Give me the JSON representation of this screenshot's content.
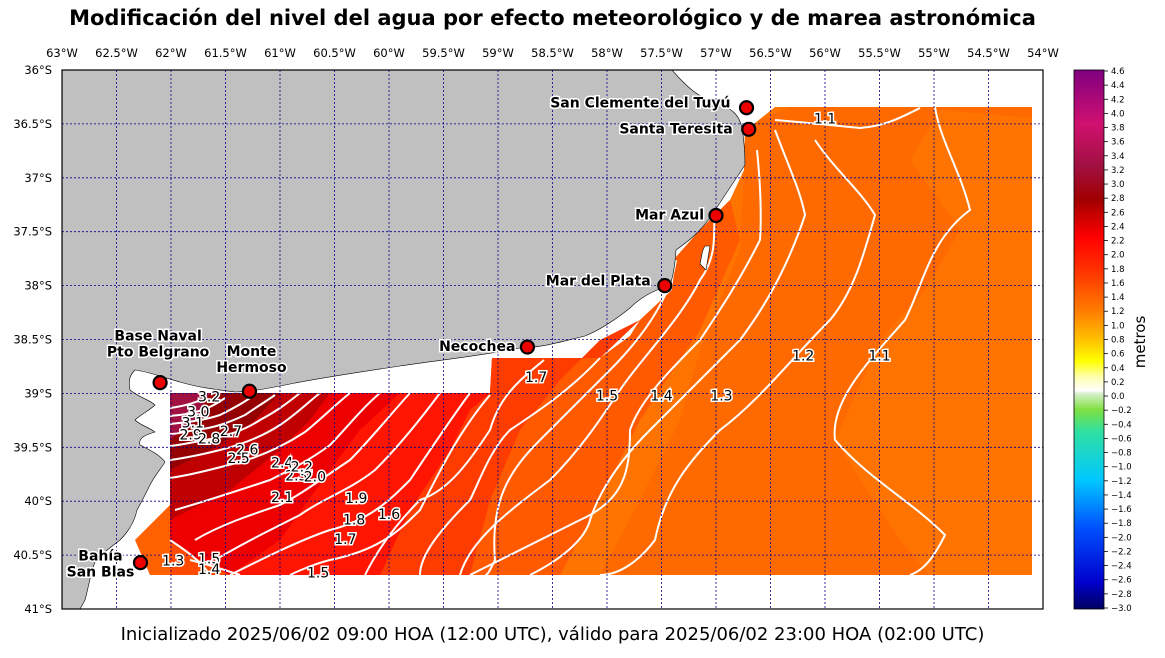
{
  "title": "Modificación del nivel del agua por efecto meteorológico y de marea astronómica",
  "footer": "Inicializado 2025/06/02 09:00 HOA (12:00 UTC), válido para 2025/06/02 23:00 HOA (02:00 UTC)",
  "map": {
    "lon_range": [
      -63.0,
      -54.0
    ],
    "lat_range": [
      -41.0,
      -36.0
    ],
    "lon_ticks": [
      {
        "v": -63.0,
        "label": "63°W"
      },
      {
        "v": -62.5,
        "label": "62.5°W"
      },
      {
        "v": -62.0,
        "label": "62°W"
      },
      {
        "v": -61.5,
        "label": "61.5°W"
      },
      {
        "v": -61.0,
        "label": "61°W"
      },
      {
        "v": -60.5,
        "label": "60.5°W"
      },
      {
        "v": -60.0,
        "label": "60°W"
      },
      {
        "v": -59.5,
        "label": "59.5°W"
      },
      {
        "v": -59.0,
        "label": "59°W"
      },
      {
        "v": -58.5,
        "label": "58.5°W"
      },
      {
        "v": -58.0,
        "label": "58°W"
      },
      {
        "v": -57.5,
        "label": "57.5°W"
      },
      {
        "v": -57.0,
        "label": "57°W"
      },
      {
        "v": -56.5,
        "label": "56.5°W"
      },
      {
        "v": -56.0,
        "label": "56°W"
      },
      {
        "v": -55.5,
        "label": "55.5°W"
      },
      {
        "v": -55.0,
        "label": "55°W"
      },
      {
        "v": -54.5,
        "label": "54.5°W"
      },
      {
        "v": -54.0,
        "label": "54°W"
      }
    ],
    "lat_ticks": [
      {
        "v": -36.0,
        "label": "36°S"
      },
      {
        "v": -36.5,
        "label": "36.5°S"
      },
      {
        "v": -37.0,
        "label": "37°S"
      },
      {
        "v": -37.5,
        "label": "37.5°S"
      },
      {
        "v": -38.0,
        "label": "38°S"
      },
      {
        "v": -38.5,
        "label": "38.5°S"
      },
      {
        "v": -39.0,
        "label": "39°S"
      },
      {
        "v": -39.5,
        "label": "39.5°S"
      },
      {
        "v": -40.0,
        "label": "40°S"
      },
      {
        "v": -40.5,
        "label": "40.5°S"
      },
      {
        "v": -41.0,
        "label": "41°S"
      }
    ],
    "stations": [
      {
        "name": "San Clemente del Tuyú",
        "lon": -56.72,
        "lat": -36.35
      },
      {
        "name": "Santa Teresita",
        "lon": -56.7,
        "lat": -36.55
      },
      {
        "name": "Mar Azul",
        "lon": -57.0,
        "lat": -37.35
      },
      {
        "name": "Mar del Plata",
        "lon": -57.47,
        "lat": -38.0
      },
      {
        "name": "Necochea",
        "lon": -58.73,
        "lat": -38.57
      },
      {
        "name": "Base Naval\nPto Belgrano",
        "lon": -62.1,
        "lat": -38.9
      },
      {
        "name": "Monte\nHermoso",
        "lon": -61.28,
        "lat": -38.98
      },
      {
        "name": "Bahía\nSan Blas",
        "lon": -62.28,
        "lat": -40.57
      }
    ],
    "contour_labels": [
      {
        "text": "1.1",
        "lon": -56.0,
        "lat": -36.45
      },
      {
        "text": "1.2",
        "lon": -56.2,
        "lat": -38.65
      },
      {
        "text": "1.1",
        "lon": -55.5,
        "lat": -38.65
      },
      {
        "text": "1.3",
        "lon": -56.95,
        "lat": -39.02
      },
      {
        "text": "1.4",
        "lon": -57.5,
        "lat": -39.02
      },
      {
        "text": "1.5",
        "lon": -58.0,
        "lat": -39.02
      },
      {
        "text": "1.7",
        "lon": -58.65,
        "lat": -38.85
      },
      {
        "text": "3.2",
        "lon": -61.65,
        "lat": -39.03
      },
      {
        "text": "3.0",
        "lon": -61.75,
        "lat": -39.17
      },
      {
        "text": "3.1",
        "lon": -61.8,
        "lat": -39.27
      },
      {
        "text": "2.9",
        "lon": -61.82,
        "lat": -39.38
      },
      {
        "text": "2.8",
        "lon": -61.65,
        "lat": -39.42
      },
      {
        "text": "2.7",
        "lon": -61.45,
        "lat": -39.35
      },
      {
        "text": "2.6",
        "lon": -61.3,
        "lat": -39.52
      },
      {
        "text": "2.5",
        "lon": -61.38,
        "lat": -39.6
      },
      {
        "text": "2.4",
        "lon": -60.98,
        "lat": -39.64
      },
      {
        "text": "2.3",
        "lon": -60.85,
        "lat": -39.76
      },
      {
        "text": "2.2",
        "lon": -60.8,
        "lat": -39.68
      },
      {
        "text": "2.1",
        "lon": -60.98,
        "lat": -39.96
      },
      {
        "text": "2.0",
        "lon": -60.68,
        "lat": -39.77
      },
      {
        "text": "1.9",
        "lon": -60.3,
        "lat": -39.97
      },
      {
        "text": "1.8",
        "lon": -60.32,
        "lat": -40.17
      },
      {
        "text": "1.7",
        "lon": -60.4,
        "lat": -40.35
      },
      {
        "text": "1.6",
        "lon": -60.0,
        "lat": -40.12
      },
      {
        "text": "1.5",
        "lon": -60.65,
        "lat": -40.66
      },
      {
        "text": "1.3",
        "lon": -61.98,
        "lat": -40.55
      },
      {
        "text": "1.5",
        "lon": -61.65,
        "lat": -40.53
      },
      {
        "text": "1.4",
        "lon": -61.65,
        "lat": -40.63
      }
    ]
  },
  "colorbar": {
    "label": "metros",
    "min": -3.0,
    "max": 4.6,
    "ticks": [
      "4.6",
      "4.4",
      "4.2",
      "4.0",
      "3.8",
      "3.6",
      "3.4",
      "3.2",
      "3.0",
      "2.8",
      "2.6",
      "2.4",
      "2.2",
      "2.0",
      "1.8",
      "1.6",
      "1.4",
      "1.2",
      "1.0",
      "0.8",
      "0.6",
      "0.4",
      "0.2",
      "0.0",
      "−0.2",
      "−0.4",
      "−0.6",
      "−0.8",
      "−1.0",
      "−1.2",
      "−1.4",
      "−1.6",
      "−1.8",
      "−2.0",
      "−2.2",
      "−2.4",
      "−2.6",
      "−2.8",
      "−3.0"
    ]
  },
  "colors": {
    "land": "#c0c0c0",
    "grid": "#00008b",
    "contour": "#ffffff",
    "station_fill": "#ee0000"
  }
}
